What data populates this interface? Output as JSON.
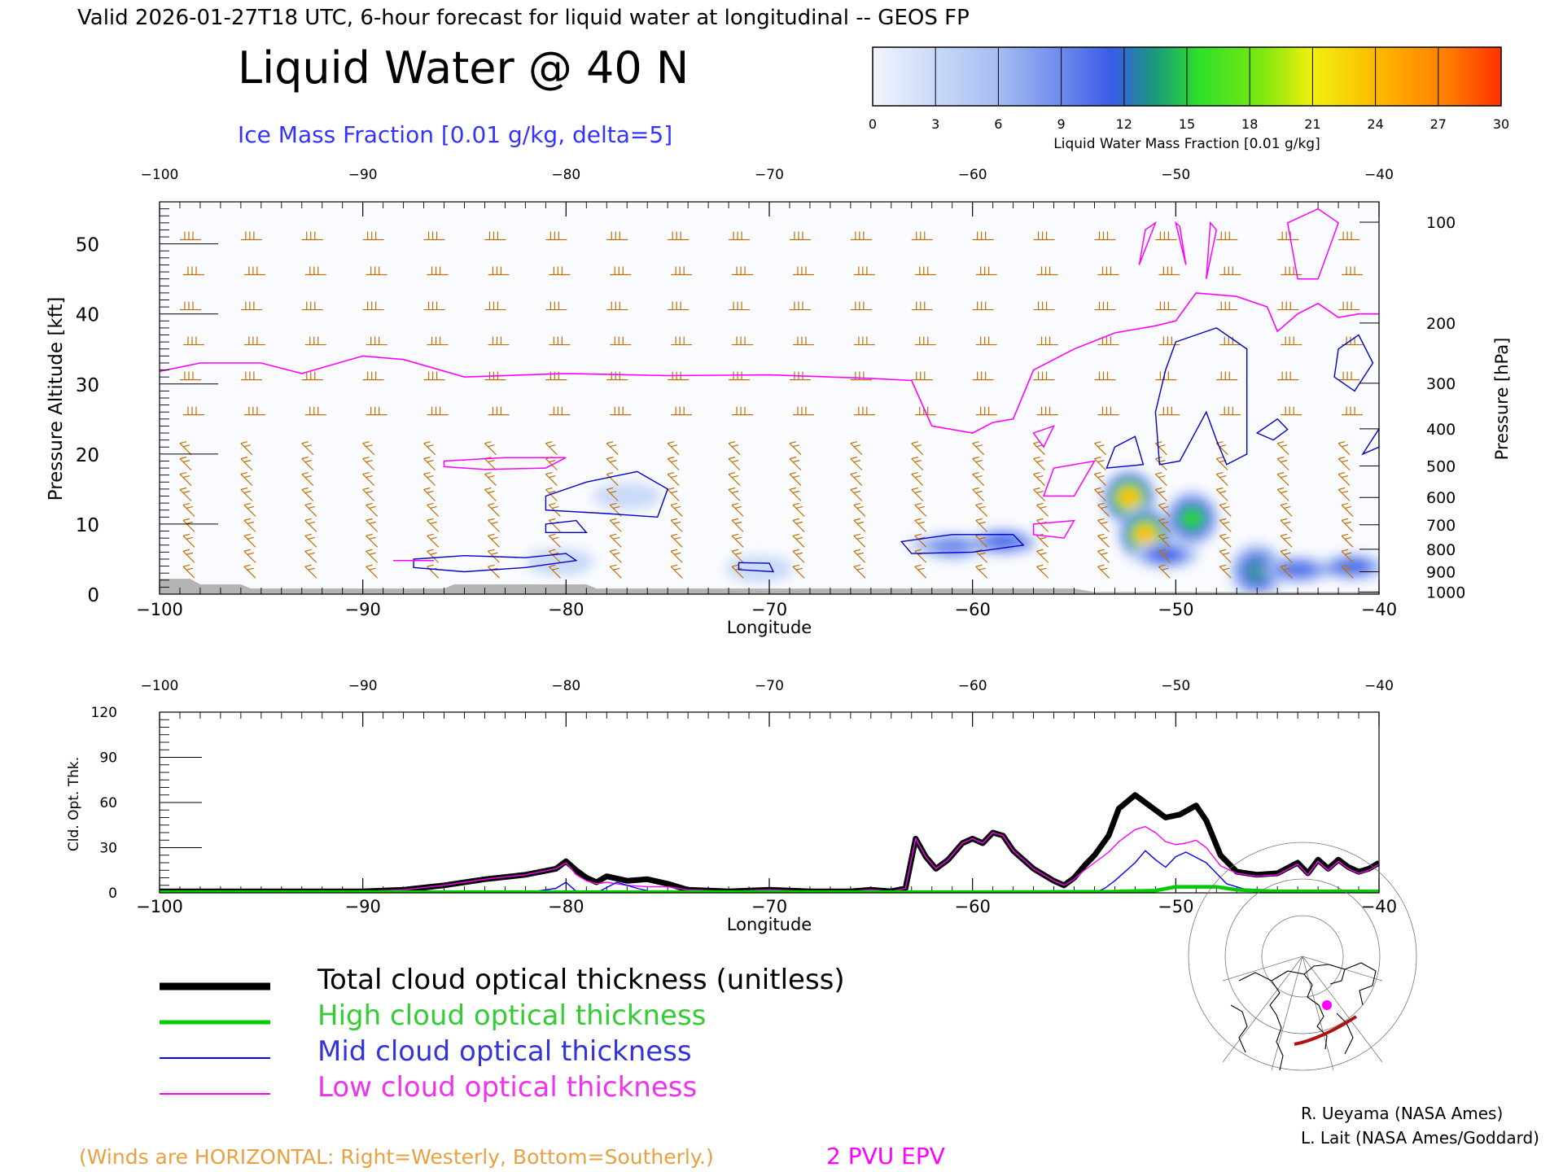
{
  "header": {
    "valid_line": "Valid 2026-01-27T18 UTC, 6-hour forecast for liquid water at longitudinal -- GEOS FP",
    "title": "Liquid Water @ 40 N",
    "subtitle": "Ice Mass Fraction [0.01 g/kg, delta=5]"
  },
  "colorbar": {
    "ticks": [
      "0",
      "3",
      "6",
      "9",
      "12",
      "15",
      "18",
      "21",
      "24",
      "27",
      "30"
    ],
    "label": "Liquid Water Mass Fraction [0.01 g/kg]",
    "colors": [
      "#ecf0fb",
      "#c5d6f7",
      "#9fb8f2",
      "#6b88ec",
      "#3b5eea",
      "#17a06d",
      "#32dc2a",
      "#86e70f",
      "#efe10c",
      "#ffb300",
      "#ff6600"
    ]
  },
  "chart_data": [
    {
      "type": "heatmap",
      "xlabel": "Longitude",
      "ylabel": "Pressure Altitude [kft]",
      "ylabel_right": "Pressure [hPa]",
      "xlim": [
        -100,
        -40
      ],
      "ylim": [
        0,
        56
      ],
      "x_ticks": [
        "−100",
        "−90",
        "−80",
        "−70",
        "−60",
        "−50",
        "−40"
      ],
      "y_ticks": [
        0,
        10,
        20,
        30,
        40,
        50
      ],
      "pressure_ticks": [
        {
          "label": "100",
          "kft": 53.1
        },
        {
          "label": "200",
          "kft": 38.7
        },
        {
          "label": "300",
          "kft": 30.1
        },
        {
          "label": "400",
          "kft": 23.6
        },
        {
          "label": "500",
          "kft": 18.3
        },
        {
          "label": "600",
          "kft": 13.8
        },
        {
          "label": "700",
          "kft": 9.9
        },
        {
          "label": "800",
          "kft": 6.4
        },
        {
          "label": "900",
          "kft": 3.2
        },
        {
          "label": "1000",
          "kft": 0.3
        }
      ],
      "pv2_line": [
        [
          -100,
          31.8
        ],
        [
          -98,
          33
        ],
        [
          -95,
          33
        ],
        [
          -93,
          31.5
        ],
        [
          -90,
          34
        ],
        [
          -88,
          33.5
        ],
        [
          -85,
          31
        ],
        [
          -80,
          31.5
        ],
        [
          -75,
          31.2
        ],
        [
          -70,
          31.3
        ],
        [
          -65,
          30.8
        ],
        [
          -63,
          30.5
        ],
        [
          -62,
          24
        ],
        [
          -60,
          23
        ],
        [
          -59,
          24.5
        ],
        [
          -58,
          25
        ],
        [
          -57,
          32
        ],
        [
          -55,
          35
        ],
        [
          -53,
          37.3
        ],
        [
          -51,
          38.3
        ],
        [
          -50,
          39
        ],
        [
          -49,
          43
        ],
        [
          -47,
          42.5
        ],
        [
          -45.5,
          41
        ],
        [
          -45,
          37.5
        ],
        [
          -44,
          40
        ],
        [
          -43,
          41.5
        ],
        [
          -42,
          39.5
        ],
        [
          -41,
          40
        ],
        [
          -40,
          40
        ]
      ],
      "liquid_blobs": [
        {
          "lon": -80.3,
          "kft": 4.6,
          "value": 5
        },
        {
          "lon": -77,
          "kft": 14,
          "value": 3
        },
        {
          "lon": -70.5,
          "kft": 3.6,
          "value": 3
        },
        {
          "lon": -61,
          "kft": 6.8,
          "value": 9
        },
        {
          "lon": -58.5,
          "kft": 7.5,
          "value": 14
        },
        {
          "lon": -52.3,
          "kft": 13.8,
          "value": 29
        },
        {
          "lon": -51.5,
          "kft": 8.5,
          "value": 28
        },
        {
          "lon": -49.2,
          "kft": 10.8,
          "value": 18
        },
        {
          "lon": -50.5,
          "kft": 5.6,
          "value": 14
        },
        {
          "lon": -46,
          "kft": 3.3,
          "value": 17
        },
        {
          "lon": -44,
          "kft": 3.5,
          "value": 14
        },
        {
          "lon": -41.3,
          "kft": 3.9,
          "value": 12
        }
      ],
      "ice_contour_level": 5,
      "terrain": [
        [
          -100,
          2.2
        ],
        [
          -98.5,
          2.2
        ],
        [
          -98,
          1.4
        ],
        [
          -96,
          1.4
        ],
        [
          -95.5,
          0.8
        ],
        [
          -86,
          0.8
        ],
        [
          -85.5,
          1.4
        ],
        [
          -79,
          1.4
        ],
        [
          -78.5,
          0.8
        ],
        [
          -63,
          0.8
        ],
        [
          -62.5,
          0.8
        ],
        [
          -55,
          0.8
        ],
        [
          -54,
          0.3
        ],
        [
          -40,
          0.3
        ]
      ]
    },
    {
      "type": "line",
      "xlabel": "Longitude",
      "ylabel": "Cld. Opt. Thk.",
      "xlim": [
        -100,
        -40
      ],
      "ylim": [
        0,
        120
      ],
      "x_ticks": [
        "−100",
        "−90",
        "−80",
        "−70",
        "−60",
        "−50",
        "−40"
      ],
      "y_ticks": [
        "0",
        "30",
        "60",
        "90",
        "120"
      ],
      "series": [
        {
          "name": "Total cloud optical thickness (unitless)",
          "color": "#000000",
          "points": [
            [
              -100,
              1
            ],
            [
              -90,
              1
            ],
            [
              -88,
              2
            ],
            [
              -86,
              5
            ],
            [
              -84,
              9
            ],
            [
              -82,
              12
            ],
            [
              -80.5,
              16
            ],
            [
              -80,
              21
            ],
            [
              -79.5,
              15
            ],
            [
              -79,
              10
            ],
            [
              -78.5,
              7
            ],
            [
              -78,
              11
            ],
            [
              -77,
              8
            ],
            [
              -76,
              9
            ],
            [
              -75,
              6
            ],
            [
              -74,
              2
            ],
            [
              -72,
              1
            ],
            [
              -70,
              2
            ],
            [
              -68,
              1
            ],
            [
              -66,
              1
            ],
            [
              -65,
              2
            ],
            [
              -64,
              1
            ],
            [
              -63.3,
              3
            ],
            [
              -62.8,
              36
            ],
            [
              -62.3,
              24
            ],
            [
              -61.8,
              16
            ],
            [
              -61.2,
              22
            ],
            [
              -60.5,
              33
            ],
            [
              -60,
              36
            ],
            [
              -59.5,
              33
            ],
            [
              -59,
              40
            ],
            [
              -58.5,
              38
            ],
            [
              -58,
              28
            ],
            [
              -57,
              16
            ],
            [
              -56,
              8
            ],
            [
              -55.5,
              5
            ],
            [
              -55,
              10
            ],
            [
              -54.5,
              18
            ],
            [
              -54,
              25
            ],
            [
              -53.3,
              38
            ],
            [
              -52.8,
              56
            ],
            [
              -52,
              65
            ],
            [
              -51,
              55
            ],
            [
              -50.5,
              50
            ],
            [
              -49.8,
              52
            ],
            [
              -49,
              58
            ],
            [
              -48.5,
              48
            ],
            [
              -47.8,
              25
            ],
            [
              -47,
              14
            ],
            [
              -46,
              12
            ],
            [
              -45,
              13
            ],
            [
              -44,
              20
            ],
            [
              -43.5,
              13
            ],
            [
              -43,
              22
            ],
            [
              -42.5,
              16
            ],
            [
              -42,
              22
            ],
            [
              -41.5,
              17
            ],
            [
              -41,
              14
            ],
            [
              -40.5,
              16
            ],
            [
              -40,
              20
            ]
          ]
        },
        {
          "name": "High cloud optical thickness",
          "color": "#00cc00",
          "points": [
            [
              -100,
              0.5
            ],
            [
              -60,
              0.5
            ],
            [
              -53,
              0.8
            ],
            [
              -51,
              1.5
            ],
            [
              -50,
              4
            ],
            [
              -48,
              4
            ],
            [
              -47,
              2
            ],
            [
              -45,
              1
            ],
            [
              -40,
              1
            ]
          ]
        },
        {
          "name": "Mid cloud optical thickness",
          "color": "#0000ff",
          "points": [
            [
              -100,
              0
            ],
            [
              -82,
              0
            ],
            [
              -80.5,
              3
            ],
            [
              -80,
              7
            ],
            [
              -79.5,
              1
            ],
            [
              -78.5,
              0
            ],
            [
              -77.5,
              7
            ],
            [
              -76.5,
              3
            ],
            [
              -75.5,
              0
            ],
            [
              -54,
              0
            ],
            [
              -53.5,
              3
            ],
            [
              -53,
              8
            ],
            [
              -52,
              20
            ],
            [
              -51.5,
              28
            ],
            [
              -51,
              22
            ],
            [
              -50.5,
              17
            ],
            [
              -50,
              24
            ],
            [
              -49.5,
              27
            ],
            [
              -48.5,
              20
            ],
            [
              -47.5,
              6
            ],
            [
              -46.5,
              2
            ],
            [
              -45,
              1
            ],
            [
              -40,
              1
            ]
          ]
        },
        {
          "name": "Low cloud optical thickness",
          "color": "#ff00ff",
          "points": [
            [
              -100,
              1
            ],
            [
              -90,
              1
            ],
            [
              -88,
              2
            ],
            [
              -86,
              5
            ],
            [
              -84,
              9
            ],
            [
              -82,
              12
            ],
            [
              -80.5,
              16
            ],
            [
              -80,
              20
            ],
            [
              -79.5,
              12
            ],
            [
              -79,
              8
            ],
            [
              -78.5,
              6
            ],
            [
              -78,
              7
            ],
            [
              -77,
              5
            ],
            [
              -76,
              4
            ],
            [
              -75,
              4
            ],
            [
              -74,
              2
            ],
            [
              -72,
              1
            ],
            [
              -70,
              2
            ],
            [
              -68,
              1
            ],
            [
              -66,
              1
            ],
            [
              -65,
              2
            ],
            [
              -64,
              1
            ],
            [
              -63.3,
              3
            ],
            [
              -62.8,
              36
            ],
            [
              -62.3,
              24
            ],
            [
              -61.8,
              16
            ],
            [
              -61.2,
              22
            ],
            [
              -60.5,
              33
            ],
            [
              -60,
              36
            ],
            [
              -59.5,
              33
            ],
            [
              -59,
              40
            ],
            [
              -58.5,
              38
            ],
            [
              -58,
              28
            ],
            [
              -57,
              16
            ],
            [
              -56,
              8
            ],
            [
              -55.5,
              5
            ],
            [
              -55,
              9
            ],
            [
              -54.5,
              15
            ],
            [
              -54,
              20
            ],
            [
              -53.3,
              27
            ],
            [
              -52.8,
              34
            ],
            [
              -52,
              42
            ],
            [
              -51.5,
              44
            ],
            [
              -51,
              40
            ],
            [
              -50.5,
              34
            ],
            [
              -50,
              32
            ],
            [
              -49.5,
              33
            ],
            [
              -49,
              35
            ],
            [
              -48.5,
              30
            ],
            [
              -47.8,
              18
            ],
            [
              -47,
              13
            ],
            [
              -46,
              11
            ],
            [
              -45,
              12
            ],
            [
              -44,
              19
            ],
            [
              -43.5,
              12
            ],
            [
              -43,
              21
            ],
            [
              -42.5,
              15
            ],
            [
              -42,
              21
            ],
            [
              -41.5,
              16
            ],
            [
              -41,
              13
            ],
            [
              -40.5,
              15
            ],
            [
              -40,
              19
            ]
          ]
        }
      ]
    }
  ],
  "legend": [
    {
      "label": "Total cloud optical thickness (unitless)",
      "color": "#000000"
    },
    {
      "label": "High cloud optical thickness",
      "color": "#33cc33"
    },
    {
      "label": "Mid cloud optical thickness",
      "color": "#3333dd"
    },
    {
      "label": "Low cloud optical thickness",
      "color": "#ee33ee"
    }
  ],
  "footer": {
    "winds_note": "(Winds are HORIZONTAL: Right=Westerly, Bottom=Southerly.)",
    "pvu_label": "2 PVU EPV",
    "credit_1": "R. Ueyama (NASA Ames)",
    "credit_2": "L. Lait (NASA Ames/Goddard)"
  },
  "colors": {
    "pv_line": "#ff00ff",
    "ice_contour": "#0000cc",
    "wind_barb": "#c07000",
    "terrain": "#b4b4b4",
    "winds_note": "#e8a040",
    "subtitle": "#3333ff"
  },
  "locator_map": {
    "icon": "globe-locator-map-icon",
    "path_color": "#b01010",
    "point_color": "#ff00ff"
  }
}
